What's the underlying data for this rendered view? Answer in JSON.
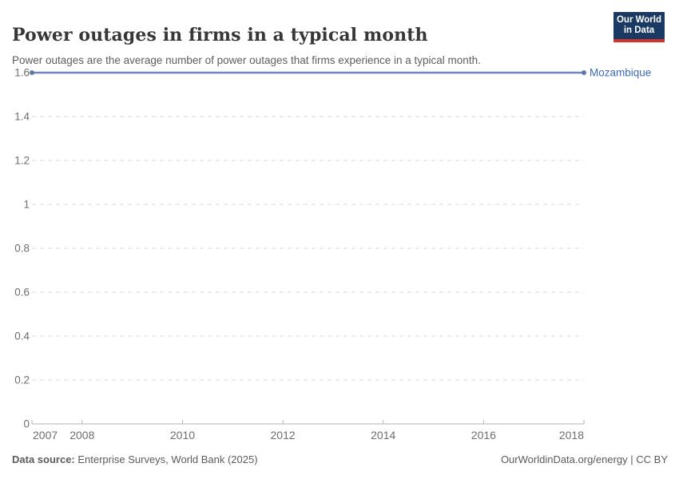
{
  "header": {
    "title": "Power outages in firms in a typical month",
    "subtitle": "Power outages are the average number of power outages that firms experience in a typical month.",
    "logo": {
      "line1": "Our World",
      "line2": "in Data",
      "bg_color": "#1b3a63",
      "bar_color": "#cf342e"
    }
  },
  "chart_data": {
    "type": "line",
    "title": "Power outages in firms in a typical month",
    "xlabel": "",
    "ylabel": "",
    "xlim": [
      2007,
      2018
    ],
    "ylim": [
      0,
      1.6
    ],
    "xticks": [
      2007,
      2008,
      2010,
      2012,
      2014,
      2016,
      2018
    ],
    "xtick_labels": [
      "2007",
      "2008",
      "2010",
      "2012",
      "2014",
      "2016",
      "2018"
    ],
    "yticks": [
      0,
      0.2,
      0.4,
      0.6,
      0.8,
      1,
      1.2,
      1.4,
      1.6
    ],
    "ytick_labels": [
      "0",
      "0.2",
      "0.4",
      "0.6",
      "0.8",
      "1",
      "1.2",
      "1.4",
      "1.6"
    ],
    "grid": "horizontal-dashed",
    "legend_position": "end-of-line-label",
    "series": [
      {
        "name": "Mozambique",
        "x": [
          2007,
          2018
        ],
        "y": [
          1.6,
          1.6
        ],
        "color": "#6c87b8",
        "marker_color": "#5f79a9",
        "label_color": "#3c6cb4",
        "endpoint_markers": true
      }
    ],
    "colors": {
      "gridline": "#d9d9d9",
      "axis_line": "#b3b3b3",
      "tick_label": "#6e6e6e"
    }
  },
  "footer": {
    "datasource_label": "Data source:",
    "datasource_value": " Enterprise Surveys, World Bank (2025)",
    "credit": "OurWorldinData.org/energy | CC BY"
  }
}
